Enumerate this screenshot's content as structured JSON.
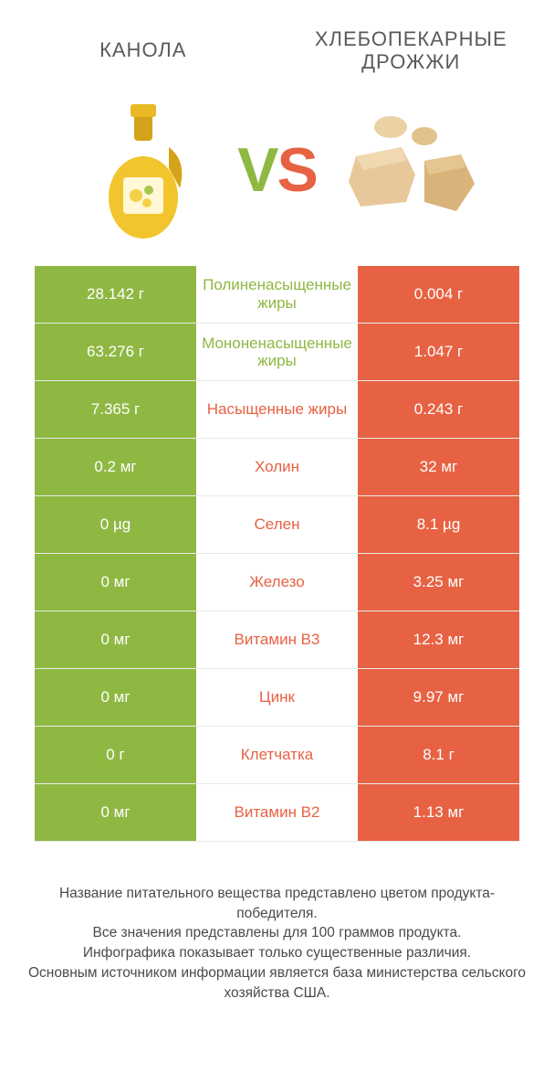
{
  "colors": {
    "green": "#8fb843",
    "orange": "#e76243",
    "text": "#5a5a5a",
    "white": "#ffffff",
    "rowBorder": "#eaeaea"
  },
  "typography": {
    "title_fontsize": 22,
    "vs_fontsize": 68,
    "cell_fontsize": 17,
    "footer_fontsize": 15.5
  },
  "header": {
    "left_title": "КАНОЛА",
    "right_title_line1": "ХЛЕБОПЕКАРНЫЕ",
    "right_title_line2": "ДРОЖЖИ"
  },
  "vs": {
    "v": "V",
    "s": "S"
  },
  "icons": {
    "left": "canola-oil-bottle",
    "right": "yeast-blocks"
  },
  "table": {
    "type": "comparison-table",
    "columns": [
      "left_value",
      "nutrient",
      "right_value"
    ],
    "rows": [
      {
        "left": "28.142 г",
        "label": "Полиненасыщенные жиры",
        "right": "0.004 г",
        "winner": "left"
      },
      {
        "left": "63.276 г",
        "label": "Мононенасыщенные жиры",
        "right": "1.047 г",
        "winner": "left"
      },
      {
        "left": "7.365 г",
        "label": "Насыщенные жиры",
        "right": "0.243 г",
        "winner": "right"
      },
      {
        "left": "0.2 мг",
        "label": "Холин",
        "right": "32 мг",
        "winner": "right"
      },
      {
        "left": "0 µg",
        "label": "Селен",
        "right": "8.1 µg",
        "winner": "right"
      },
      {
        "left": "0 мг",
        "label": "Железо",
        "right": "3.25 мг",
        "winner": "right"
      },
      {
        "left": "0 мг",
        "label": "Витамин B3",
        "right": "12.3 мг",
        "winner": "right"
      },
      {
        "left": "0 мг",
        "label": "Цинк",
        "right": "9.97 мг",
        "winner": "right"
      },
      {
        "left": "0 г",
        "label": "Клетчатка",
        "right": "8.1 г",
        "winner": "right"
      },
      {
        "left": "0 мг",
        "label": "Витамин B2",
        "right": "1.13 мг",
        "winner": "right"
      }
    ]
  },
  "footer": {
    "line1": "Название питательного вещества представлено цветом продукта-победителя.",
    "line2": "Все значения представлены для 100 граммов продукта.",
    "line3": "Инфографика показывает только существенные различия.",
    "line4": "Основным источником информации является база министерства сельского хозяйства США."
  }
}
